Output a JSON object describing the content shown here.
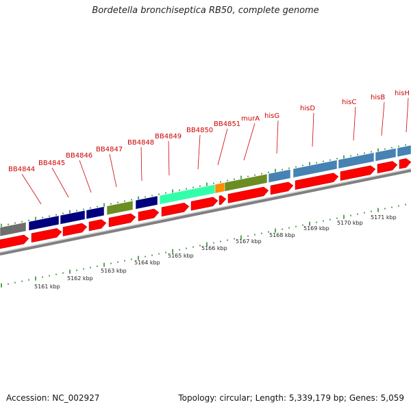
{
  "title": "Bordetella bronchiseptica RB50, complete genome",
  "accession": "Accession: NC_002927",
  "summary": "Topology: circular; Length: 5,339,179 bp; Genes: 5,059",
  "colors": {
    "forward_cds": "#ff0000",
    "leader_line": "#cc0000",
    "tick": "#2e8b2e",
    "backbone": "#808080",
    "gray": "#6e6e6e",
    "navy": "#00007f",
    "olive": "#6b8e23",
    "mint": "#33ffaa",
    "orange": "#ff8c00",
    "steelblue": "#4682b4"
  },
  "kbp_labels": [
    "5161 kbp",
    "5162 kbp",
    "5163 kbp",
    "5164 kbp",
    "5165 kbp",
    "5166 kbp",
    "5167 kbp",
    "5168 kbp",
    "5169 kbp",
    "5170 kbp",
    "5171 kbp"
  ],
  "gene_labels": [
    "BB4844",
    "BB4845",
    "BB4846",
    "BB4847",
    "BB4848",
    "BB4849",
    "BB4850",
    "BB4851",
    "murA",
    "hisG",
    "hisD",
    "hisC",
    "hisB",
    "hisH"
  ],
  "cog_blocks": [
    {
      "color": "gray"
    },
    {
      "color": "navy"
    },
    {
      "color": "navy"
    },
    {
      "color": "navy"
    },
    {
      "color": "olive"
    },
    {
      "color": "navy"
    },
    {
      "color": "mint"
    },
    {
      "color": "orange"
    },
    {
      "color": "olive"
    },
    {
      "color": "steelblue"
    },
    {
      "color": "steelblue"
    },
    {
      "color": "steelblue"
    },
    {
      "color": "steelblue"
    },
    {
      "color": "steelblue"
    }
  ]
}
